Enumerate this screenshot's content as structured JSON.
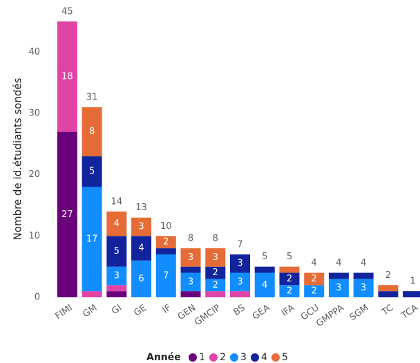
{
  "chart_data": {
    "type": "stacked_bar",
    "y_label": "Nombre de id.étudiants sondés",
    "legend_title": "Année",
    "categories": [
      "FIMI",
      "GM",
      "GI",
      "GE",
      "IF",
      "GEN",
      "GMCIP",
      "BS",
      "GEA",
      "IFA",
      "GCU",
      "GMPPA",
      "SGM",
      "TC",
      "TCA"
    ],
    "series": [
      {
        "name": "1",
        "color": "#6b007b",
        "values": [
          27,
          null,
          1,
          null,
          null,
          1,
          null,
          null,
          null,
          null,
          null,
          null,
          null,
          null,
          null
        ]
      },
      {
        "name": "2",
        "color": "#e044a7",
        "values": [
          18,
          1,
          1,
          null,
          null,
          null,
          1,
          1,
          null,
          null,
          null,
          null,
          null,
          null,
          null
        ]
      },
      {
        "name": "3",
        "color": "#118dff",
        "values": [
          null,
          17,
          3,
          6,
          7,
          3,
          2,
          3,
          4,
          2,
          2,
          3,
          3,
          null,
          null
        ]
      },
      {
        "name": "4",
        "color": "#12239e",
        "values": [
          null,
          5,
          5,
          4,
          1,
          1,
          2,
          3,
          1,
          2,
          null,
          1,
          1,
          1,
          1
        ]
      },
      {
        "name": "5",
        "color": "#e66c37",
        "values": [
          null,
          8,
          4,
          3,
          2,
          3,
          3,
          null,
          null,
          1,
          2,
          null,
          null,
          1,
          null
        ]
      }
    ],
    "totals": [
      45,
      31,
      14,
      13,
      10,
      8,
      8,
      7,
      5,
      5,
      4,
      4,
      4,
      2,
      1
    ],
    "ylim": [
      0,
      45
    ],
    "yticks": [
      0,
      10,
      20,
      30,
      40
    ],
    "grid": false,
    "legend": "bottom"
  }
}
